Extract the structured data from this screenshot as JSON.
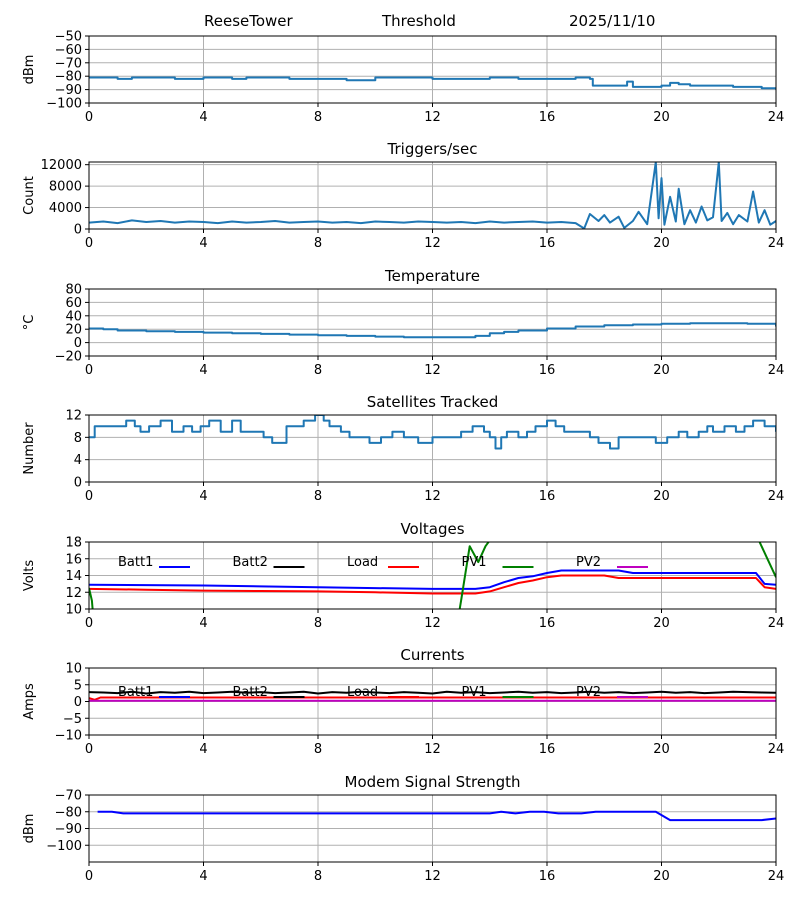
{
  "header": {
    "station": "ReeseTower",
    "title": "Threshold",
    "date": "2025/11/10"
  },
  "colors": {
    "series": "#1f77b4",
    "grid": "#b0b0b0",
    "Batt1": "#0000ff",
    "Batt2": "#000000",
    "Load": "#ff0000",
    "PV1": "#008000",
    "PV2": "#bf00bf"
  },
  "chart_data": [
    {
      "id": "threshold",
      "type": "line",
      "title": "",
      "ylabel": "dBm",
      "xlim": [
        0,
        24
      ],
      "ylim": [
        -100,
        -50
      ],
      "yticks": [
        -100,
        -90,
        -80,
        -70,
        -60,
        -50
      ],
      "xticks": [
        0,
        4,
        8,
        12,
        16,
        20,
        24
      ],
      "series": [
        {
          "name": "Threshold",
          "color": "#1f77b4",
          "step": true,
          "x": [
            0,
            1,
            1.5,
            2,
            3,
            4,
            5,
            5.5,
            6,
            7,
            8,
            9,
            10,
            11,
            12,
            13,
            14,
            15,
            16,
            17,
            17.5,
            17.6,
            18,
            18.5,
            18.8,
            19,
            19.5,
            20,
            20.3,
            20.6,
            21,
            21.5,
            22,
            22.5,
            23,
            23.5,
            24
          ],
          "y": [
            -81,
            -82,
            -81,
            -81,
            -82,
            -81,
            -82,
            -81,
            -81,
            -82,
            -82,
            -83,
            -81,
            -81,
            -82,
            -82,
            -81,
            -82,
            -82,
            -81,
            -82,
            -87,
            -87,
            -87,
            -84,
            -88,
            -88,
            -87,
            -85,
            -86,
            -87,
            -87,
            -87,
            -88,
            -88,
            -89,
            -90
          ]
        }
      ]
    },
    {
      "id": "triggers",
      "type": "line",
      "title": "Triggers/sec",
      "ylabel": "Count",
      "xlim": [
        0,
        24
      ],
      "ylim": [
        0,
        12500
      ],
      "yticks": [
        0,
        4000,
        8000,
        12000
      ],
      "xticks": [
        0,
        4,
        8,
        12,
        16,
        20,
        24
      ],
      "series": [
        {
          "name": "Triggers",
          "color": "#1f77b4",
          "x": [
            0,
            0.5,
            1,
            1.5,
            2,
            2.5,
            3,
            3.5,
            4,
            4.5,
            5,
            5.5,
            6,
            6.5,
            7,
            7.5,
            8,
            8.5,
            9,
            9.5,
            10,
            10.5,
            11,
            11.5,
            12,
            12.5,
            13,
            13.5,
            14,
            14.5,
            15,
            15.5,
            16,
            16.5,
            17,
            17.3,
            17.5,
            17.8,
            18,
            18.2,
            18.5,
            18.7,
            19,
            19.2,
            19.5,
            19.8,
            19.9,
            20,
            20.1,
            20.3,
            20.5,
            20.6,
            20.8,
            21,
            21.2,
            21.4,
            21.6,
            21.8,
            22,
            22.1,
            22.3,
            22.5,
            22.7,
            23,
            23.2,
            23.4,
            23.6,
            23.8,
            24
          ],
          "y": [
            1200,
            1400,
            1100,
            1600,
            1300,
            1500,
            1200,
            1400,
            1300,
            1100,
            1400,
            1200,
            1300,
            1500,
            1200,
            1300,
            1400,
            1200,
            1300,
            1100,
            1400,
            1300,
            1200,
            1400,
            1300,
            1200,
            1300,
            1100,
            1400,
            1200,
            1300,
            1400,
            1200,
            1300,
            1100,
            100,
            2800,
            1500,
            2600,
            1200,
            2300,
            200,
            1500,
            3200,
            900,
            12500,
            2000,
            9500,
            800,
            6000,
            1400,
            7500,
            900,
            3500,
            1200,
            4200,
            1600,
            2200,
            12500,
            1500,
            3000,
            900,
            2600,
            1400,
            7000,
            1200,
            3500,
            800,
            1500
          ]
        }
      ]
    },
    {
      "id": "temperature",
      "type": "line",
      "title": "Temperature",
      "ylabel": "°C",
      "xlim": [
        0,
        24
      ],
      "ylim": [
        -20,
        80
      ],
      "yticks": [
        -20,
        0,
        20,
        40,
        60,
        80
      ],
      "xticks": [
        0,
        4,
        8,
        12,
        16,
        20,
        24
      ],
      "series": [
        {
          "name": "Temperature",
          "color": "#1f77b4",
          "step": true,
          "x": [
            0,
            0.5,
            1,
            2,
            3,
            4,
            5,
            6,
            7,
            8,
            9,
            10,
            11,
            12,
            13,
            13.5,
            14,
            14.5,
            15,
            16,
            17,
            18,
            19,
            20,
            21,
            22,
            23,
            24
          ],
          "y": [
            21,
            20,
            18,
            17,
            16,
            15,
            14,
            13,
            12,
            11,
            10,
            9,
            8,
            8,
            8,
            10,
            14,
            16,
            18,
            21,
            24,
            26,
            27,
            28,
            29,
            29,
            28,
            24
          ]
        }
      ]
    },
    {
      "id": "satellites",
      "type": "line",
      "title": "Satellites Tracked",
      "ylabel": "Number",
      "xlim": [
        0,
        24
      ],
      "ylim": [
        0,
        12
      ],
      "yticks": [
        0,
        4,
        8,
        12
      ],
      "xticks": [
        0,
        4,
        8,
        12,
        16,
        20,
        24
      ],
      "series": [
        {
          "name": "Satellites",
          "color": "#1f77b4",
          "step": true,
          "x": [
            0,
            0.2,
            0.7,
            1.3,
            1.6,
            1.8,
            2.1,
            2.5,
            2.9,
            3.3,
            3.6,
            3.9,
            4.2,
            4.6,
            5,
            5.3,
            5.8,
            6.1,
            6.4,
            6.9,
            7.1,
            7.5,
            7.9,
            8.2,
            8.4,
            8.8,
            9.1,
            9.4,
            9.8,
            10.2,
            10.6,
            11,
            11.5,
            12,
            12.4,
            13,
            13.4,
            13.8,
            14,
            14.2,
            14.4,
            14.6,
            15,
            15.3,
            15.6,
            16,
            16.3,
            16.6,
            17.2,
            17.5,
            17.8,
            18.2,
            18.5,
            18.9,
            19.2,
            19.8,
            20.2,
            20.6,
            20.9,
            21.3,
            21.6,
            21.8,
            22.2,
            22.6,
            22.9,
            23.2,
            23.6,
            24
          ],
          "y": [
            8,
            10,
            10,
            11,
            10,
            9,
            10,
            11,
            9,
            10,
            9,
            10,
            11,
            9,
            11,
            9,
            9,
            8,
            7,
            10,
            10,
            11,
            12,
            11,
            10,
            9,
            8,
            8,
            7,
            8,
            9,
            8,
            7,
            8,
            8,
            9,
            10,
            9,
            8,
            6,
            8,
            9,
            8,
            9,
            10,
            11,
            10,
            9,
            9,
            8,
            7,
            6,
            8,
            8,
            8,
            7,
            8,
            9,
            8,
            9,
            10,
            9,
            10,
            9,
            10,
            11,
            10,
            9
          ]
        }
      ]
    },
    {
      "id": "voltages",
      "type": "line",
      "title": "Voltages",
      "ylabel": "Volts",
      "xlim": [
        0,
        24
      ],
      "ylim": [
        10,
        18
      ],
      "yticks": [
        10,
        12,
        14,
        16,
        18
      ],
      "xticks": [
        0,
        4,
        8,
        12,
        16,
        20,
        24
      ],
      "legend": [
        "Batt1",
        "Batt2",
        "Load",
        "PV1",
        "PV2"
      ],
      "series": [
        {
          "name": "Batt1",
          "color": "#0000ff",
          "x": [
            0,
            2,
            4,
            6,
            8,
            10,
            12,
            13.5,
            14,
            14.5,
            15,
            15.5,
            16,
            16.5,
            17,
            18,
            18.5,
            19,
            20,
            21,
            22,
            23.3,
            23.6,
            24
          ],
          "y": [
            12.9,
            12.85,
            12.8,
            12.7,
            12.6,
            12.5,
            12.4,
            12.4,
            12.6,
            13.2,
            13.7,
            13.9,
            14.3,
            14.6,
            14.6,
            14.6,
            14.6,
            14.3,
            14.3,
            14.3,
            14.3,
            14.3,
            13.0,
            12.9
          ]
        },
        {
          "name": "Load",
          "color": "#ff0000",
          "x": [
            0,
            2,
            4,
            6,
            8,
            10,
            12,
            13.5,
            14,
            14.5,
            15,
            15.5,
            16,
            16.5,
            17,
            18,
            18.5,
            19,
            20,
            21,
            22,
            23.3,
            23.6,
            24
          ],
          "y": [
            12.4,
            12.3,
            12.2,
            12.15,
            12.1,
            12.0,
            11.85,
            11.85,
            12.1,
            12.6,
            13.1,
            13.4,
            13.8,
            14.0,
            14.0,
            14.0,
            13.7,
            13.7,
            13.7,
            13.7,
            13.7,
            13.7,
            12.6,
            12.4
          ]
        },
        {
          "name": "PV1",
          "color": "#008000",
          "x": [
            0,
            0.1,
            0.15,
            12.9,
            13.0,
            13.3,
            13.6,
            13.85,
            14.0,
            23.4,
            23.7,
            24
          ],
          "y": [
            12.5,
            11.0,
            9.0,
            9.0,
            11.0,
            17.5,
            15.6,
            17.5,
            18.2,
            18.2,
            16.0,
            13.8
          ]
        }
      ]
    },
    {
      "id": "currents",
      "type": "line",
      "title": "Currents",
      "ylabel": "Amps",
      "xlim": [
        0,
        24
      ],
      "ylim": [
        -10,
        10
      ],
      "yticks": [
        -10,
        -5,
        0,
        5,
        10
      ],
      "xticks": [
        0,
        4,
        8,
        12,
        16,
        20,
        24
      ],
      "legend": [
        "Batt1",
        "Batt2",
        "Load",
        "PV1",
        "PV2"
      ],
      "series": [
        {
          "name": "Batt2",
          "color": "#000000",
          "x": [
            0,
            0.5,
            1,
            1.5,
            2,
            2.5,
            3,
            3.5,
            4,
            4.5,
            5,
            5.5,
            6,
            6.5,
            7,
            7.5,
            8,
            8.5,
            9,
            9.5,
            10,
            10.5,
            11,
            11.5,
            12,
            12.5,
            13,
            13.5,
            14,
            14.5,
            15,
            15.5,
            16,
            16.5,
            17,
            17.5,
            18,
            18.5,
            19,
            19.5,
            20,
            20.5,
            21,
            21.5,
            22,
            22.5,
            23,
            23.5,
            24
          ],
          "y": [
            2.8,
            2.7,
            2.5,
            2.9,
            2.4,
            2.8,
            2.6,
            2.9,
            2.5,
            2.7,
            2.9,
            2.6,
            2.8,
            2.5,
            2.7,
            2.9,
            2.4,
            2.8,
            2.6,
            2.9,
            2.7,
            2.5,
            2.8,
            2.6,
            2.4,
            2.9,
            2.6,
            2.8,
            2.5,
            2.7,
            2.9,
            2.6,
            2.8,
            2.5,
            2.7,
            2.9,
            2.6,
            2.8,
            2.5,
            2.7,
            2.9,
            2.6,
            2.8,
            2.5,
            2.7,
            2.9,
            2.8,
            2.7,
            2.6
          ]
        },
        {
          "name": "Load",
          "color": "#ff0000",
          "x": [
            0,
            0.2,
            0.4,
            24
          ],
          "y": [
            1.0,
            0.5,
            1.2,
            1.2
          ]
        },
        {
          "name": "PV2",
          "color": "#bf00bf",
          "x": [
            0,
            24
          ],
          "y": [
            0.2,
            0.2
          ]
        }
      ]
    },
    {
      "id": "modem",
      "type": "line",
      "title": "Modem Signal Strength",
      "ylabel": "dBm",
      "xlim": [
        0,
        24
      ],
      "ylim": [
        -110,
        -70
      ],
      "yticks": [
        -100,
        -90,
        -80,
        -70
      ],
      "xticks": [
        0,
        4,
        8,
        12,
        16,
        20,
        24
      ],
      "series": [
        {
          "name": "Modem",
          "color": "#0000ff",
          "x": [
            0.3,
            0.8,
            1.2,
            14,
            14.4,
            14.9,
            15.4,
            15.9,
            16.4,
            17.2,
            17.7,
            18.4,
            19.8,
            20.3,
            23.5,
            24
          ],
          "y": [
            -80,
            -80,
            -81,
            -81,
            -80,
            -81,
            -80,
            -80,
            -81,
            -81,
            -80,
            -80,
            -80,
            -85,
            -85,
            -84
          ]
        }
      ]
    }
  ]
}
